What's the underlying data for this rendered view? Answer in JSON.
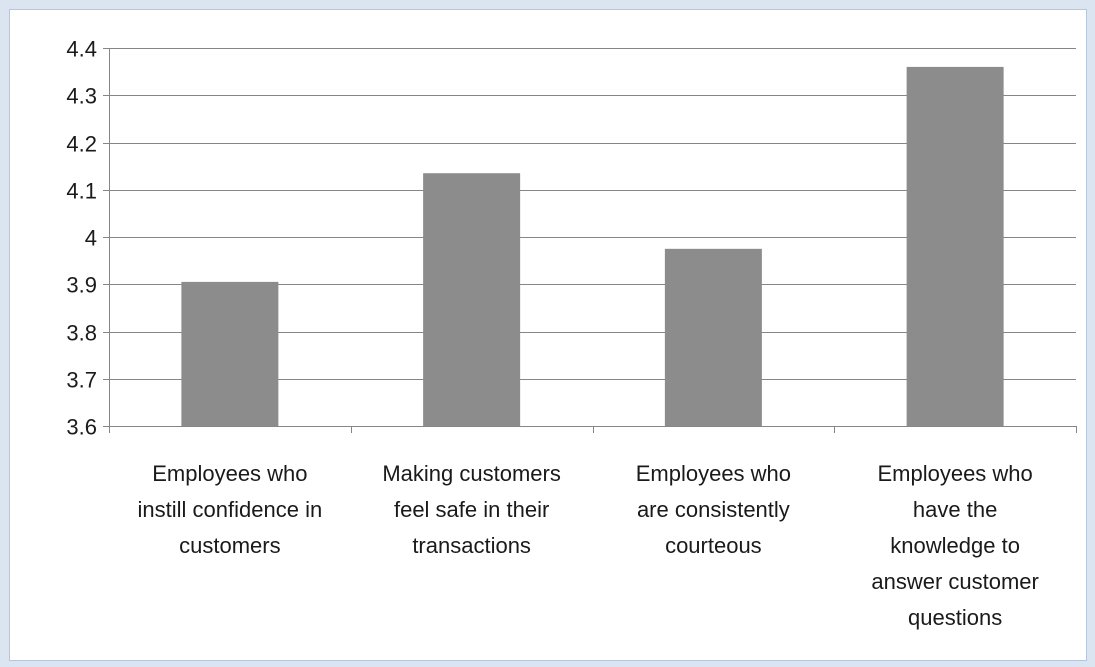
{
  "chart_data": {
    "type": "bar",
    "categories": [
      [
        "Employees who",
        "instill confidence in",
        "customers"
      ],
      [
        "Making customers",
        "feel safe in their",
        "transactions"
      ],
      [
        "Employees who",
        "are consistently",
        "courteous"
      ],
      [
        "Employees who",
        "have the",
        "knowledge to",
        "answer customer",
        "questions"
      ]
    ],
    "values": [
      3.905,
      4.135,
      3.975,
      4.36
    ],
    "ylim": [
      3.6,
      4.4
    ],
    "yticks": [
      "3.6",
      "3.7",
      "3.8",
      "3.9",
      "4",
      "4.1",
      "4.2",
      "4.3",
      "4.4"
    ],
    "grid": true,
    "legend": "none",
    "colors": {
      "bar": "#8c8c8c",
      "grid": "#868686",
      "background": "#dbe5f1",
      "plot": "#ffffff"
    }
  }
}
